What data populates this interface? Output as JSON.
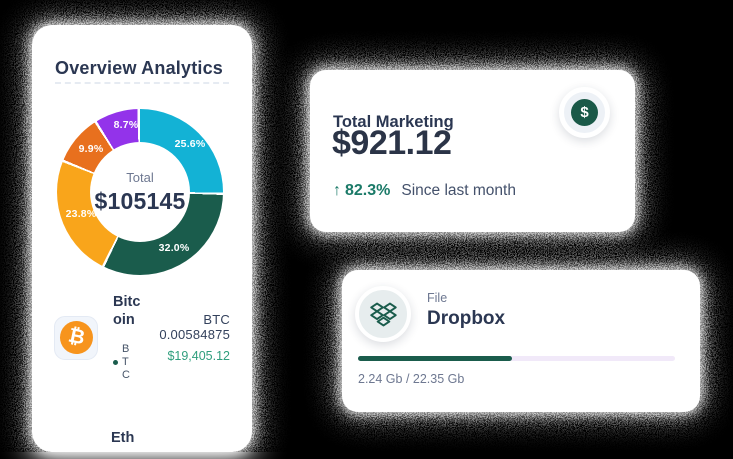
{
  "overview_card": {
    "title": "Overview Analytics",
    "donut_center_label": "Total",
    "donut_center_value": "$105145",
    "assets": [
      {
        "name": "Bitcoin",
        "ticker": "BTC",
        "icon_glyph": "₿",
        "amount_label": "BTC 0.00584875",
        "value_label": "$19,405.12"
      },
      {
        "name": "Eth"
      }
    ]
  },
  "chart_data": {
    "type": "pie",
    "title": "Overview Analytics",
    "center_label": "Total",
    "center_value": "$105145",
    "legend_position": "none",
    "segments": [
      {
        "label": "25.6%",
        "value": 25.6,
        "color": "#13b2d5",
        "color_name": "cyan"
      },
      {
        "label": "32.0%",
        "value": 32.0,
        "color": "#1a5c4c",
        "color_name": "dark-green"
      },
      {
        "label": "23.8%",
        "value": 23.8,
        "color": "#f9a51b",
        "color_name": "amber"
      },
      {
        "label": "9.9%",
        "value": 9.9,
        "color": "#e8701e",
        "color_name": "orange"
      },
      {
        "label": "8.7%",
        "value": 8.7,
        "color": "#9333ea",
        "color_name": "purple"
      }
    ]
  },
  "marketing_card": {
    "title": "Total Marketing",
    "amount": "$921.12",
    "delta_arrow": "↑",
    "delta": "82.3%",
    "delta_caption": "Since last month",
    "icon_glyph": "$",
    "accent_color": "#1a5948"
  },
  "dropbox_card": {
    "category": "File",
    "name": "Dropbox",
    "progress_percent": 48.6,
    "usage": "2.24 Gb / 22.35 Gb",
    "progress_color": "#1a5c4c",
    "track_color": "#f1e9f9"
  }
}
